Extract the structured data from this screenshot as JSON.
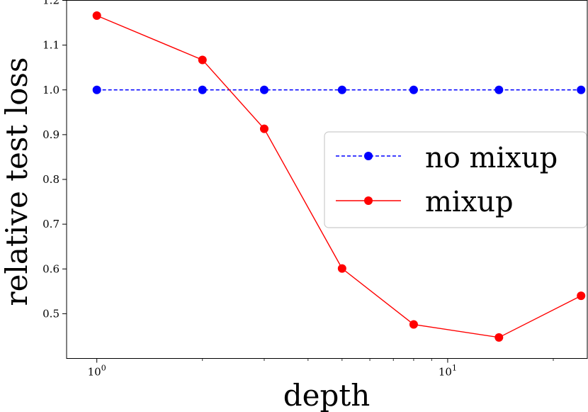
{
  "chart_data": {
    "type": "line",
    "xscale": "log",
    "x": [
      1,
      2,
      3,
      5,
      8,
      14,
      24
    ],
    "xlim": [
      0.82,
      25
    ],
    "ylim": [
      0.4,
      1.2
    ],
    "xlabel": "depth",
    "ylabel": "relative test loss",
    "yticks": [
      "0.5",
      "0.6",
      "0.7",
      "0.8",
      "0.9",
      "1.0",
      "1.1",
      "1.2"
    ],
    "xticks": [
      {
        "base": "10",
        "exp": "0",
        "value": 1
      },
      {
        "base": "10",
        "exp": "1",
        "value": 10
      }
    ],
    "grid": false,
    "legend_position": "center-right",
    "series": [
      {
        "name": "no mixup",
        "color": "#0000ff",
        "linestyle": "dashed",
        "marker": "circle",
        "values": [
          1.0,
          1.0,
          1.0,
          1.0,
          1.0,
          1.0,
          1.0
        ]
      },
      {
        "name": "mixup",
        "color": "#ff0000",
        "linestyle": "solid",
        "marker": "circle",
        "values": [
          1.166,
          1.067,
          0.913,
          0.601,
          0.476,
          0.447,
          0.54
        ]
      }
    ]
  }
}
